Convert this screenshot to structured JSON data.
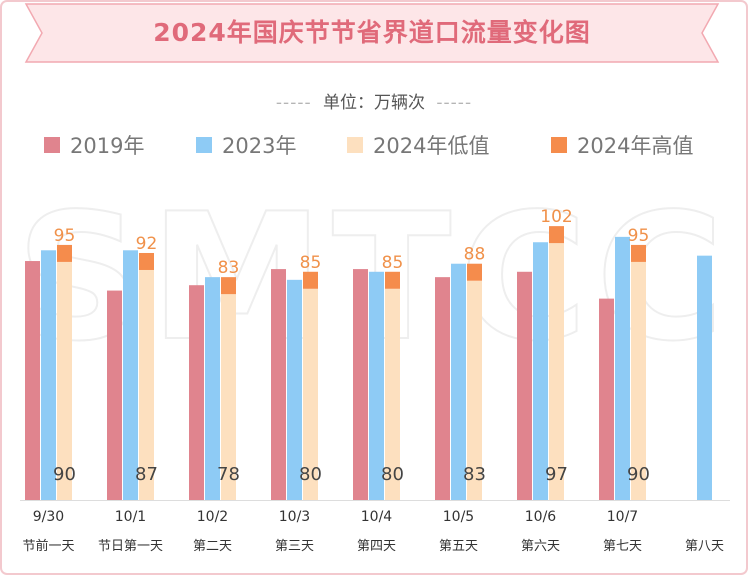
{
  "title": "2024年国庆节节省界道口流量变化图",
  "unit_label": "单位：万辆次",
  "unit_dashes": "-----",
  "watermark": "SMTCC",
  "colors": {
    "title_text": "#e06a7a",
    "banner_fill": "#fde6e8",
    "banner_border": "#f2a9b1",
    "y2019": "#e0848e",
    "y2023": "#8ecbf5",
    "low2024": "#fde0bf",
    "high2024": "#f58c4c",
    "high_label": "#f0914a",
    "low_label": "#444444"
  },
  "chart_data": {
    "type": "bar",
    "title": "2024年国庆节节省界道口流量变化图",
    "unit": "单位：万辆次",
    "legend_position": "top",
    "grid": false,
    "categories": [
      "9/30 节前一天",
      "10/1 节日第一天",
      "10/2 第二天",
      "10/3 第三天",
      "10/4 第四天",
      "10/5 第五天",
      "10/6 第六天",
      "10/7 第七天",
      "第八天"
    ],
    "dates": [
      "9/30",
      "10/1",
      "10/2",
      "10/3",
      "10/4",
      "10/5",
      "10/6",
      "10/7",
      ""
    ],
    "day_labels": [
      "节前一天",
      "节日第一天",
      "第二天",
      "第三天",
      "第四天",
      "第五天",
      "第六天",
      "第七天",
      "第八天"
    ],
    "ylim": [
      0,
      110
    ],
    "series": [
      {
        "name": "2019年",
        "key": "y2019",
        "values": [
          89,
          78,
          80,
          86,
          86,
          83,
          85,
          75,
          null
        ]
      },
      {
        "name": "2023年",
        "key": "y2023",
        "values": [
          93,
          93,
          83,
          82,
          85,
          88,
          96,
          98,
          91
        ]
      },
      {
        "name": "2024年低值",
        "key": "low2024",
        "values": [
          90,
          87,
          78,
          80,
          80,
          83,
          97,
          90,
          null
        ]
      },
      {
        "name": "2024年高值",
        "key": "high2024",
        "values": [
          95,
          92,
          83,
          85,
          85,
          88,
          102,
          95,
          null
        ]
      }
    ]
  }
}
